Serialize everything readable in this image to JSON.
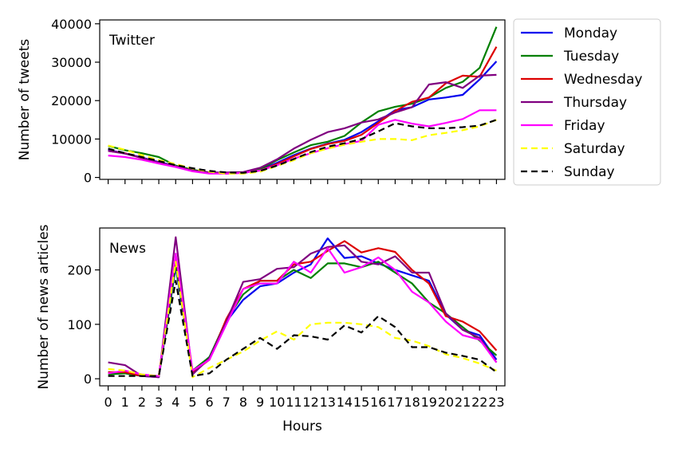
{
  "chart_data": [
    {
      "type": "line",
      "title": "Twitter",
      "ylabel": "Number of tweets",
      "xlabel": "",
      "x": [
        0,
        1,
        2,
        3,
        4,
        5,
        6,
        7,
        8,
        9,
        10,
        11,
        12,
        13,
        14,
        15,
        16,
        17,
        18,
        19,
        20,
        21,
        22,
        23
      ],
      "ylim": [
        -500,
        41000
      ],
      "yticks": [
        0,
        10000,
        20000,
        30000,
        40000
      ],
      "xtick_labels_shown": false,
      "legend_position": "outside-right",
      "series": [
        {
          "name": "Monday",
          "color": "#0000ee",
          "dash": "solid",
          "values": [
            7200,
            6200,
            5200,
            4000,
            3000,
            1900,
            1200,
            1200,
            1300,
            2000,
            3800,
            5800,
            7500,
            8800,
            9800,
            11800,
            14600,
            17500,
            18300,
            20300,
            20800,
            21500,
            25500,
            30200
          ]
        },
        {
          "name": "Tuesday",
          "color": "#008000",
          "dash": "solid",
          "values": [
            8200,
            7100,
            6300,
            5300,
            3100,
            2000,
            1300,
            1100,
            1300,
            2200,
            4500,
            6500,
            8400,
            9300,
            10800,
            14300,
            17200,
            18400,
            19200,
            20800,
            23300,
            24900,
            28500,
            39200
          ]
        },
        {
          "name": "Wednesday",
          "color": "#dd0000",
          "dash": "solid",
          "values": [
            6900,
            6300,
            5000,
            3800,
            2900,
            1800,
            1200,
            1000,
            1200,
            1800,
            3500,
            5500,
            7400,
            8700,
            9500,
            11100,
            14200,
            17300,
            19700,
            20800,
            24500,
            26500,
            26200,
            34000
          ]
        },
        {
          "name": "Thursday",
          "color": "#800080",
          "dash": "solid",
          "values": [
            6900,
            6200,
            5100,
            3900,
            2900,
            1800,
            1300,
            1300,
            1400,
            2500,
            4700,
            7500,
            9800,
            11800,
            12800,
            14300,
            15100,
            16900,
            18300,
            24200,
            24800,
            23300,
            26500,
            26700
          ]
        },
        {
          "name": "Friday",
          "color": "#ff00ff",
          "dash": "solid",
          "values": [
            5700,
            5300,
            4600,
            3600,
            2700,
            1600,
            1000,
            1000,
            1200,
            1800,
            3200,
            4900,
            6300,
            7600,
            8700,
            9500,
            13700,
            15000,
            14000,
            13300,
            14200,
            15200,
            17500,
            17500
          ]
        },
        {
          "name": "Saturday",
          "color": "#ffff00",
          "dash": "dashed",
          "values": [
            8300,
            7200,
            5800,
            4500,
            3500,
            2300,
            1500,
            1000,
            1000,
            1500,
            3000,
            4500,
            6300,
            7500,
            8500,
            9300,
            10000,
            10000,
            9700,
            11000,
            11600,
            12300,
            13300,
            15000
          ]
        },
        {
          "name": "Sunday",
          "color": "#000000",
          "dash": "dashed",
          "values": [
            7500,
            6300,
            5300,
            4300,
            3200,
            2400,
            1700,
            1300,
            1200,
            1700,
            3100,
            4800,
            6600,
            8000,
            8900,
            10000,
            12000,
            14100,
            13300,
            12800,
            12800,
            13100,
            13500,
            15000
          ]
        }
      ]
    },
    {
      "type": "line",
      "title": "News",
      "ylabel": "Number of news articles",
      "xlabel": "Hours",
      "x": [
        0,
        1,
        2,
        3,
        4,
        5,
        6,
        7,
        8,
        9,
        10,
        11,
        12,
        13,
        14,
        15,
        16,
        17,
        18,
        19,
        20,
        21,
        22,
        23
      ],
      "ylim": [
        -13,
        277
      ],
      "yticks": [
        0,
        100,
        200
      ],
      "xtick_labels": [
        "0",
        "1",
        "2",
        "3",
        "4",
        "5",
        "6",
        "7",
        "8",
        "9",
        "10",
        "11",
        "12",
        "13",
        "14",
        "15",
        "16",
        "17",
        "18",
        "19",
        "20",
        "21",
        "22",
        "23"
      ],
      "legend_position": "none",
      "series": [
        {
          "name": "Monday",
          "color": "#0000ee",
          "dash": "solid",
          "values": [
            12,
            10,
            5,
            3,
            205,
            12,
            40,
            105,
            145,
            170,
            175,
            195,
            210,
            258,
            222,
            225,
            212,
            200,
            190,
            180,
            118,
            90,
            80,
            35
          ]
        },
        {
          "name": "Tuesday",
          "color": "#008000",
          "dash": "solid",
          "values": [
            8,
            10,
            5,
            5,
            210,
            15,
            40,
            108,
            155,
            180,
            180,
            200,
            185,
            212,
            212,
            205,
            215,
            195,
            175,
            140,
            120,
            95,
            70,
            43
          ]
        },
        {
          "name": "Wednesday",
          "color": "#dd0000",
          "dash": "solid",
          "values": [
            12,
            12,
            5,
            5,
            225,
            12,
            35,
            110,
            165,
            180,
            180,
            210,
            215,
            235,
            253,
            232,
            240,
            233,
            200,
            175,
            115,
            105,
            87,
            52
          ]
        },
        {
          "name": "Thursday",
          "color": "#800080",
          "dash": "solid",
          "values": [
            30,
            25,
            5,
            3,
            260,
            8,
            38,
            105,
            178,
            183,
            202,
            205,
            230,
            242,
            245,
            215,
            210,
            225,
            195,
            195,
            120,
            90,
            75,
            30
          ]
        },
        {
          "name": "Friday",
          "color": "#ff00ff",
          "dash": "solid",
          "values": [
            10,
            15,
            8,
            5,
            230,
            15,
            35,
            100,
            165,
            175,
            175,
            215,
            195,
            240,
            195,
            205,
            223,
            200,
            160,
            140,
            105,
            80,
            72,
            30
          ]
        },
        {
          "name": "Saturday",
          "color": "#ffff00",
          "dash": "dashed",
          "values": [
            18,
            15,
            8,
            5,
            215,
            3,
            20,
            35,
            50,
            70,
            87,
            72,
            100,
            103,
            103,
            100,
            95,
            75,
            70,
            60,
            45,
            38,
            28,
            15
          ]
        },
        {
          "name": "Sunday",
          "color": "#000000",
          "dash": "dashed",
          "values": [
            5,
            5,
            5,
            5,
            180,
            5,
            10,
            35,
            55,
            75,
            55,
            80,
            78,
            72,
            98,
            85,
            115,
            95,
            58,
            58,
            48,
            42,
            35,
            12
          ]
        }
      ]
    }
  ]
}
